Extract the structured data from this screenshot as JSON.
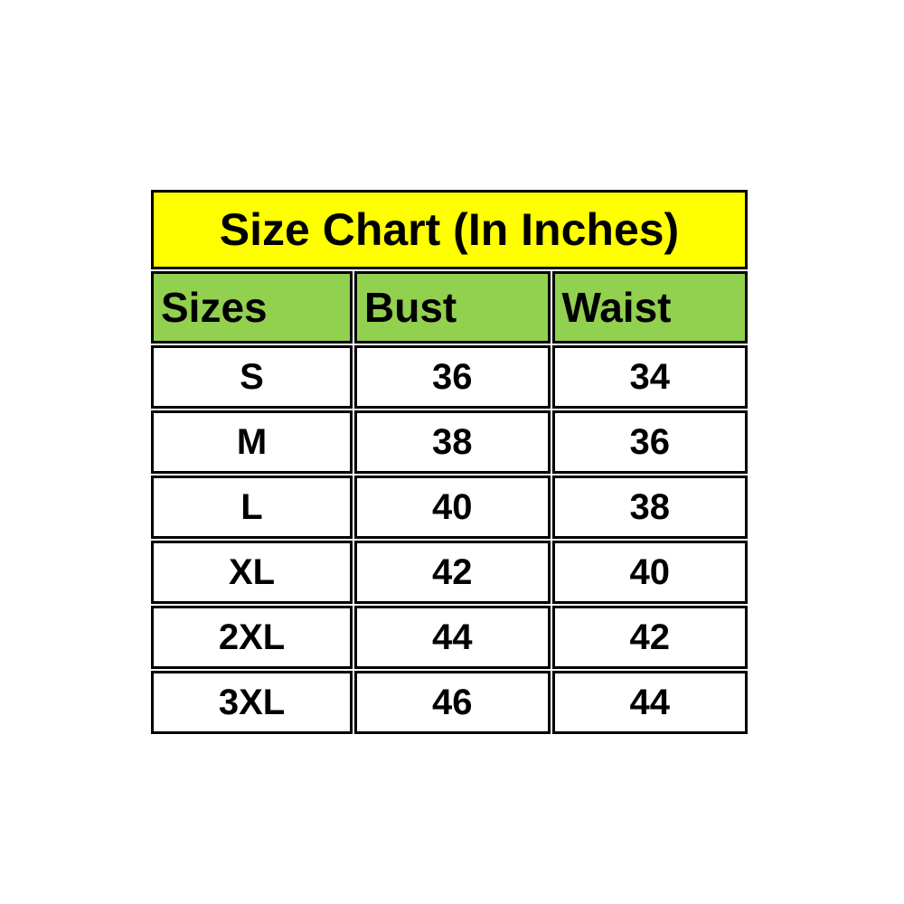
{
  "title": "Size Chart (In Inches)",
  "columns": [
    "Sizes",
    "Bust",
    "Waist"
  ],
  "rows": [
    [
      "S",
      "36",
      "34"
    ],
    [
      "M",
      "38",
      "36"
    ],
    [
      "L",
      "40",
      "38"
    ],
    [
      "XL",
      "42",
      "40"
    ],
    [
      "2XL",
      "44",
      "42"
    ],
    [
      "3XL",
      "46",
      "44"
    ]
  ],
  "colors": {
    "title_bg": "#ffff00",
    "header_bg": "#92d050",
    "row_bg": "#ffffff",
    "border": "#000000",
    "text": "#000000",
    "page_bg": "#ffffff"
  },
  "chart_data": {
    "type": "table",
    "title": "Size Chart (In Inches)",
    "columns": [
      "Sizes",
      "Bust",
      "Waist"
    ],
    "rows": [
      {
        "size": "S",
        "bust": 36,
        "waist": 34
      },
      {
        "size": "M",
        "bust": 38,
        "waist": 36
      },
      {
        "size": "L",
        "bust": 40,
        "waist": 38
      },
      {
        "size": "XL",
        "bust": 42,
        "waist": 40
      },
      {
        "size": "2XL",
        "bust": 44,
        "waist": 42
      },
      {
        "size": "3XL",
        "bust": 46,
        "waist": 44
      }
    ],
    "units": "inches"
  }
}
